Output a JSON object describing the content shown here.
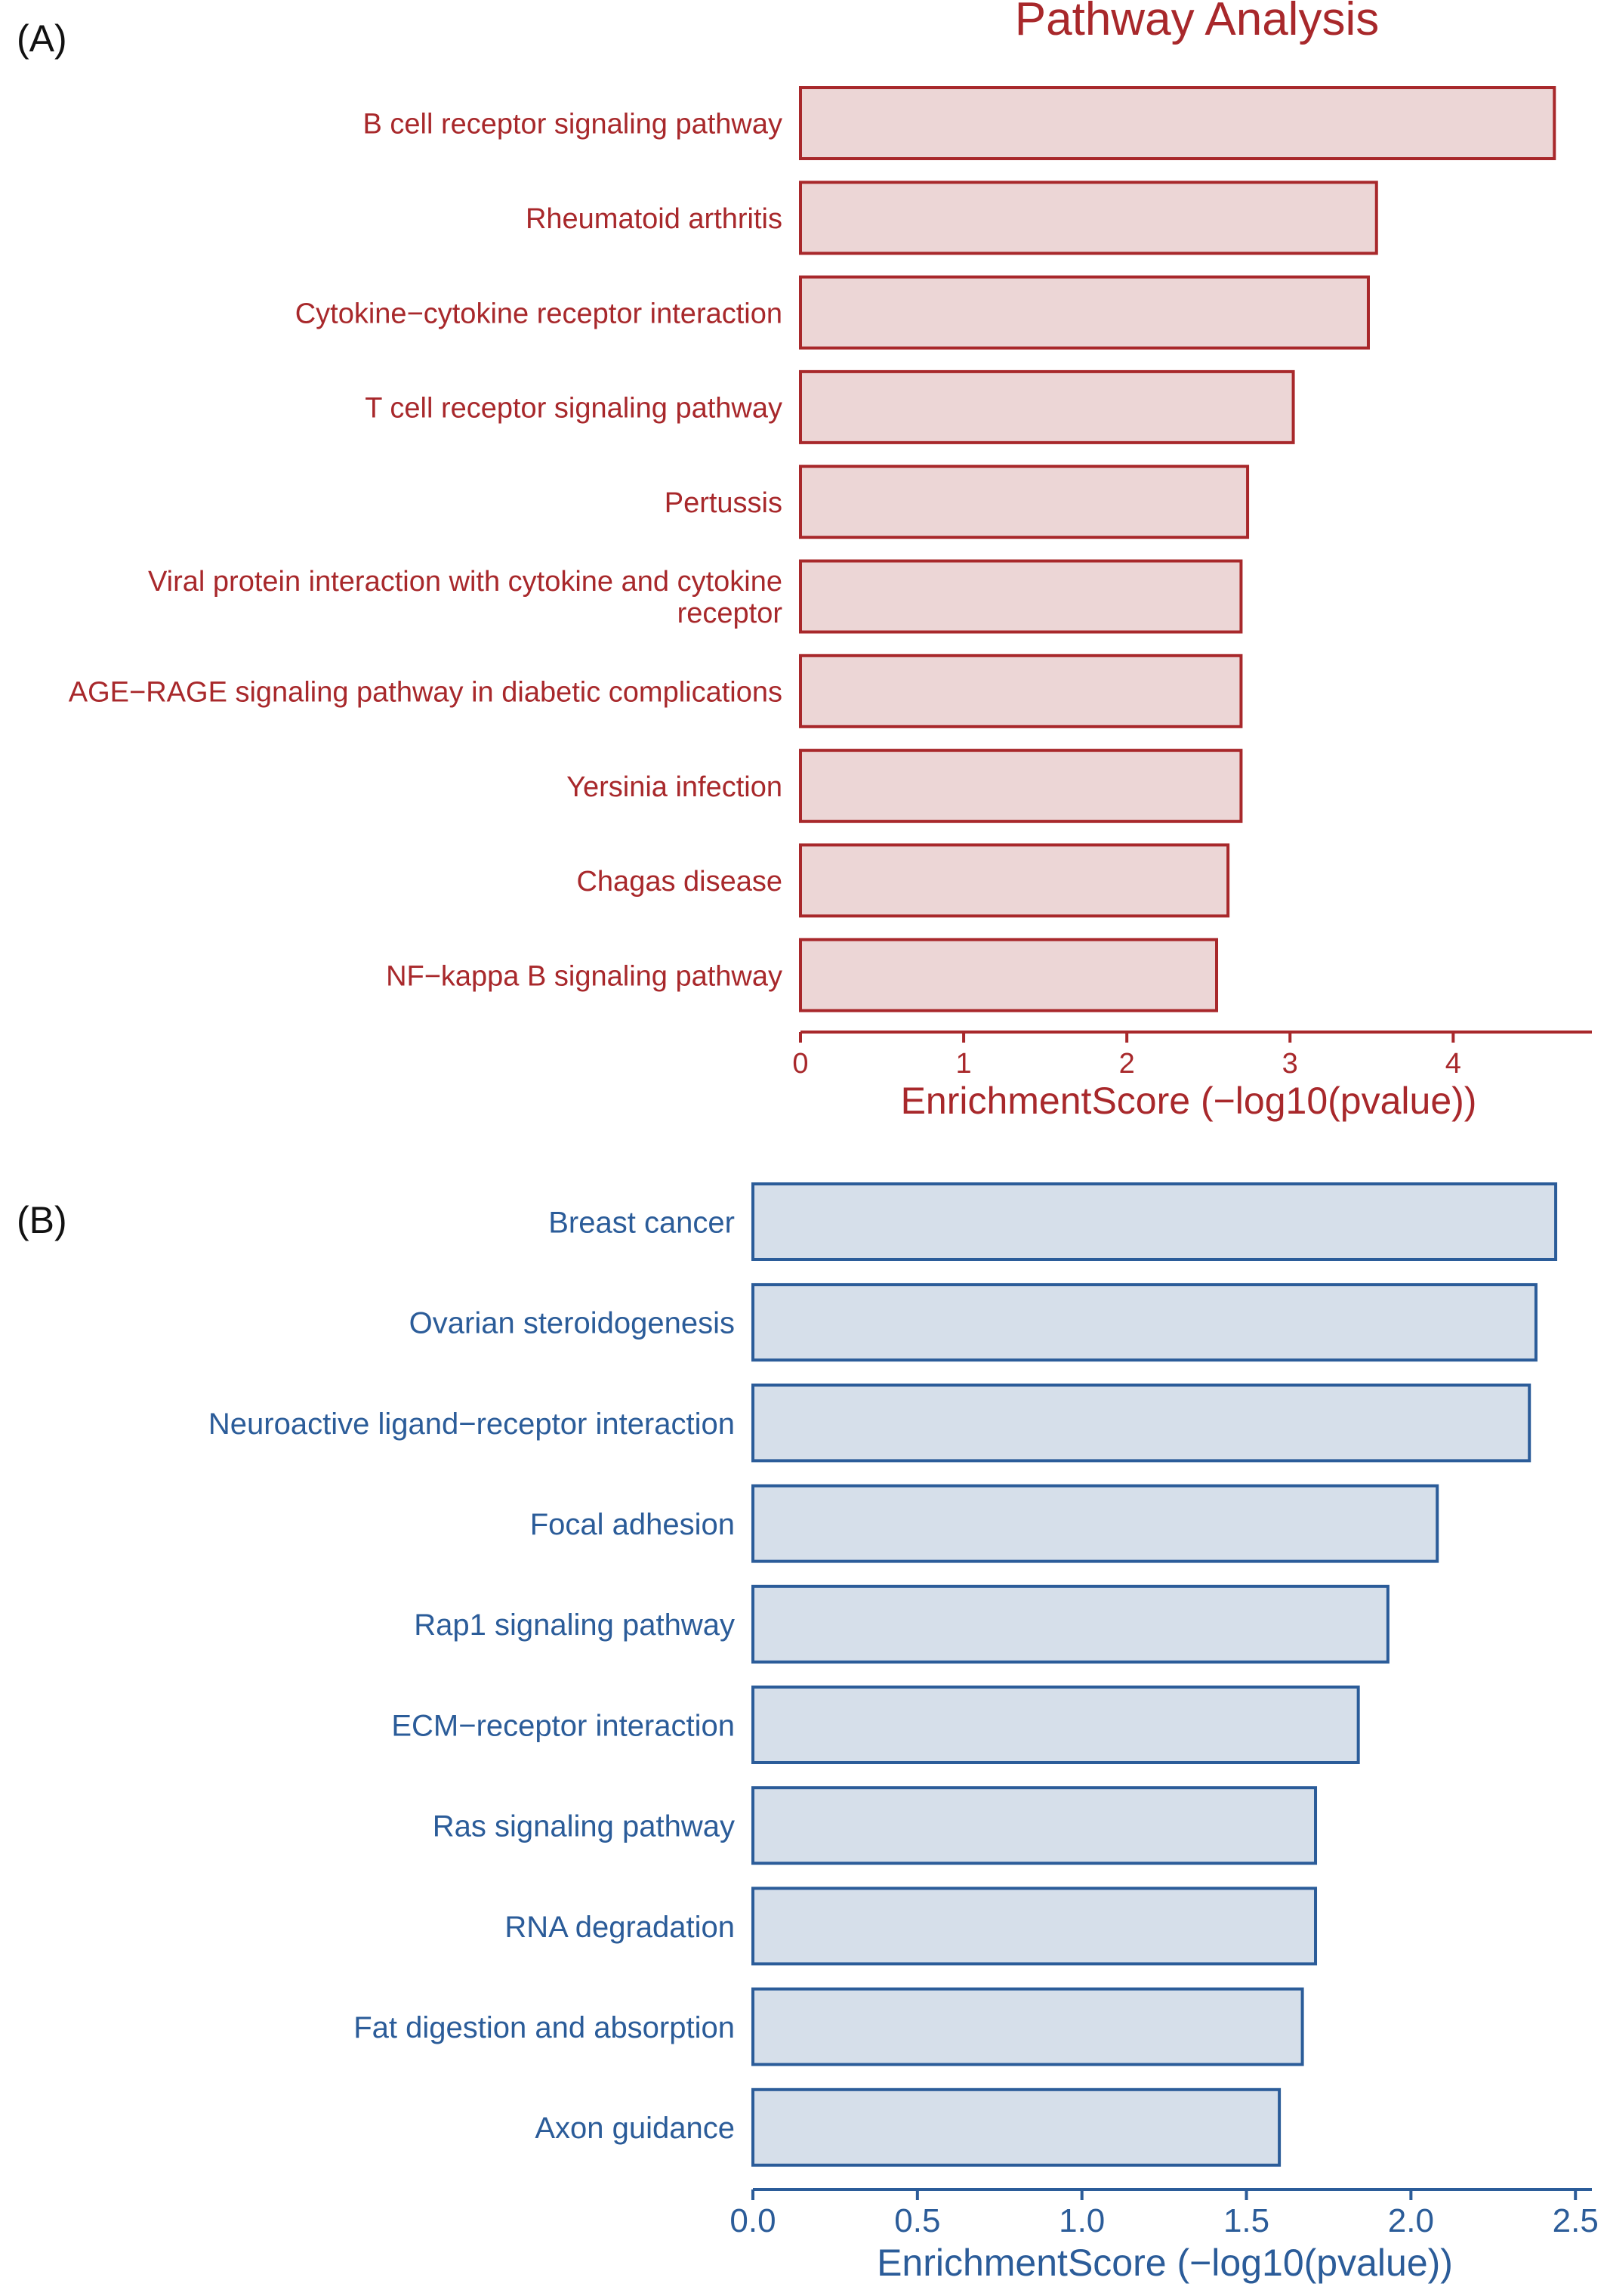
{
  "colors": {
    "panel_a": {
      "text": "#a8282b",
      "bar_fill": "#ecd6d6",
      "bar_stroke": "#a8282b"
    },
    "panel_b": {
      "text": "#2b5c99",
      "bar_fill": "#d6dfea",
      "bar_stroke": "#2b5c99"
    }
  },
  "chart_data": [
    {
      "type": "bar",
      "orientation": "horizontal",
      "panel_label": "(A)",
      "title": "Pathway Analysis",
      "xlabel": "EnrichmentScore (−log10(pvalue))",
      "ylabel": "",
      "xlim": [
        0,
        4.85
      ],
      "xticks": [
        0,
        1,
        2,
        3,
        4
      ],
      "xtick_labels": [
        "0",
        "1",
        "2",
        "3",
        "4"
      ],
      "grid": false,
      "categories": [
        "B cell receptor signaling pathway",
        "Rheumatoid arthritis",
        "Cytokine−cytokine receptor interaction",
        "T cell receptor signaling pathway",
        "Pertussis",
        "Viral protein interaction with cytokine and cytokine receptor",
        "AGE−RAGE signaling pathway in diabetic complications",
        "Yersinia infection",
        "Chagas disease",
        "NF−kappa B signaling pathway"
      ],
      "category_lines": [
        [
          "B cell receptor signaling pathway"
        ],
        [
          "Rheumatoid arthritis"
        ],
        [
          "Cytokine−cytokine receptor interaction"
        ],
        [
          "T cell receptor signaling pathway"
        ],
        [
          "Pertussis"
        ],
        [
          "Viral protein interaction with cytokine and cytokine",
          "receptor"
        ],
        [
          "AGE−RAGE signaling pathway in diabetic complications"
        ],
        [
          "Yersinia infection"
        ],
        [
          "Chagas disease"
        ],
        [
          "NF−kappa B signaling pathway"
        ]
      ],
      "values": [
        4.62,
        3.53,
        3.48,
        3.02,
        2.74,
        2.7,
        2.7,
        2.7,
        2.62,
        2.55
      ]
    },
    {
      "type": "bar",
      "orientation": "horizontal",
      "panel_label": "(B)",
      "title": "",
      "xlabel": "EnrichmentScore (−log10(pvalue))",
      "ylabel": "",
      "xlim": [
        0,
        2.55
      ],
      "xticks": [
        0,
        0.5,
        1,
        1.5,
        2,
        2.5
      ],
      "xtick_labels": [
        "0.0",
        "0.5",
        "1.0",
        "1.5",
        "2.0",
        "2.5"
      ],
      "grid": false,
      "categories": [
        "Breast cancer",
        "Ovarian steroidogenesis",
        "Neuroactive ligand−receptor interaction",
        "Focal adhesion",
        "Rap1 signaling pathway",
        "ECM−receptor interaction",
        "Ras signaling pathway",
        "RNA degradation",
        "Fat digestion and absorption",
        "Axon guidance"
      ],
      "category_lines": [
        [
          "Breast cancer"
        ],
        [
          "Ovarian steroidogenesis"
        ],
        [
          "Neuroactive ligand−receptor interaction"
        ],
        [
          "Focal adhesion"
        ],
        [
          "Rap1 signaling pathway"
        ],
        [
          "ECM−receptor interaction"
        ],
        [
          "Ras signaling pathway"
        ],
        [
          "RNA degradation"
        ],
        [
          "Fat digestion and absorption"
        ],
        [
          "Axon guidance"
        ]
      ],
      "values": [
        2.44,
        2.38,
        2.36,
        2.08,
        1.93,
        1.84,
        1.71,
        1.71,
        1.67,
        1.6
      ]
    }
  ]
}
